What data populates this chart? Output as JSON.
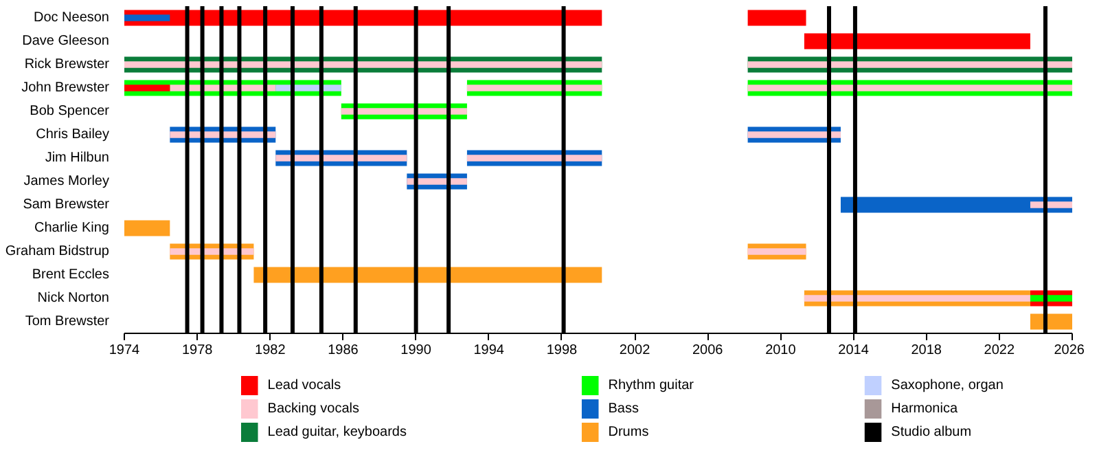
{
  "chart_data": {
    "type": "bar",
    "orientation": "horizontal",
    "categories": [
      "Doc Neeson",
      "Dave Gleeson",
      "Rick Brewster",
      "John Brewster",
      "Bob Spencer",
      "Chris Bailey",
      "Jim Hilbun",
      "James Morley",
      "Sam Brewster",
      "Charlie King",
      "Graham Bidstrup",
      "Brent Eccles",
      "Nick Norton",
      "Tom Brewster"
    ],
    "xlim": [
      1974,
      2026
    ],
    "xticks": [
      1974,
      1978,
      1982,
      1986,
      1990,
      1994,
      1998,
      2002,
      2006,
      2010,
      2014,
      2018,
      2022,
      2026
    ],
    "grid": false,
    "legend": "bottom",
    "series": [
      {
        "name": "Lead vocals",
        "color": "#ff0000",
        "base": [
          1974,
          2011.3,
          null,
          null,
          null,
          null,
          null,
          null,
          null,
          null,
          null,
          null,
          null,
          null
        ],
        "values": [
          26.2,
          12.4,
          null,
          null,
          null,
          null,
          null,
          null,
          null,
          null,
          null,
          null,
          null,
          null
        ]
      },
      {
        "name": "Backing vocals",
        "color": "#ffc8d0",
        "base": [
          null,
          null,
          1974,
          1976.5,
          1985.9,
          1976.5,
          1982.3,
          1989.5,
          2023.7,
          null,
          1976.5,
          null,
          2011.3,
          null
        ],
        "values": [
          null,
          null,
          26.2,
          5.8,
          6.9,
          5.8,
          7.2,
          3.3,
          2.3,
          null,
          4.6,
          null,
          12.4,
          null
        ]
      },
      {
        "color": "#ffc8d0",
        "base": [
          null,
          null,
          2008.2,
          1992.8,
          null,
          2008.2,
          1992.8,
          null,
          null,
          null,
          2008.2,
          null,
          null,
          null
        ],
        "values": [
          null,
          null,
          17.8,
          7.4,
          null,
          5.1,
          7.4,
          null,
          null,
          null,
          3.2,
          null,
          null,
          null
        ]
      },
      {
        "color": "#ffc8d0",
        "base": [
          null,
          null,
          null,
          2008.2,
          null,
          null,
          null,
          null,
          null,
          null,
          null,
          null,
          null,
          null
        ],
        "values": [
          null,
          null,
          null,
          17.8,
          null,
          null,
          null,
          null,
          null,
          null,
          null,
          null,
          null,
          null
        ]
      },
      {
        "name": "Lead guitar, keyboards",
        "color": "#0a7d3a",
        "base": [
          null,
          null,
          1974,
          null,
          null,
          null,
          null,
          null,
          null,
          null,
          null,
          null,
          null,
          null
        ],
        "values": [
          null,
          null,
          26.2,
          null,
          null,
          null,
          null,
          null,
          null,
          null,
          null,
          null,
          null,
          null
        ]
      },
      {
        "name": "Rhythm guitar",
        "color": "#00ff00",
        "base": [
          null,
          null,
          null,
          1974,
          1985.9,
          null,
          null,
          null,
          null,
          null,
          null,
          null,
          2023.7,
          null
        ],
        "values": [
          null,
          null,
          null,
          11.9,
          6.9,
          null,
          null,
          null,
          null,
          null,
          null,
          null,
          2.3,
          null
        ]
      },
      {
        "name": "Bass",
        "color": "#0a64c8",
        "base": [
          1974,
          null,
          null,
          null,
          null,
          1976.5,
          1982.3,
          1989.5,
          2013.3,
          null,
          null,
          null,
          null,
          null
        ],
        "values": [
          2.5,
          null,
          null,
          null,
          null,
          5.8,
          7.2,
          3.3,
          12.7,
          null,
          null,
          null,
          null,
          null
        ]
      },
      {
        "name": "Drums",
        "color": "#ffa020",
        "base": [
          null,
          null,
          null,
          null,
          null,
          null,
          null,
          null,
          null,
          1974,
          1976.5,
          1981.1,
          2011.3,
          2023.7
        ],
        "values": [
          null,
          null,
          null,
          null,
          null,
          null,
          null,
          null,
          null,
          2.5,
          4.6,
          19.1,
          12.4,
          2.3
        ]
      },
      {
        "name": "Saxophone, organ",
        "color": "#c0d0ff",
        "base": [
          null,
          null,
          null,
          1982.3,
          null,
          null,
          null,
          null,
          null,
          null,
          null,
          null,
          null,
          null
        ],
        "values": [
          null,
          null,
          null,
          3.6,
          null,
          null,
          null,
          null,
          null,
          null,
          null,
          null,
          null,
          null
        ]
      },
      {
        "name": "Harmonica",
        "color": "#a89898",
        "base": [
          null,
          null,
          null,
          null,
          null,
          null,
          null,
          null,
          null,
          null,
          null,
          null,
          null,
          null
        ],
        "values": [
          null,
          null,
          null,
          null,
          null,
          null,
          null,
          null,
          null,
          null,
          null,
          null,
          null,
          null
        ]
      },
      {
        "color": "#ff0000",
        "base": [
          2008.2,
          null,
          null,
          1974,
          null,
          null,
          null,
          null,
          null,
          null,
          null,
          null,
          2023.7,
          null
        ],
        "values": [
          3.2,
          null,
          null,
          2.5,
          null,
          null,
          null,
          null,
          null,
          null,
          null,
          null,
          2.3,
          null
        ]
      },
      {
        "color": "#0a7d3a",
        "base": [
          null,
          null,
          2008.2,
          null,
          null,
          null,
          null,
          null,
          null,
          null,
          null,
          null,
          null,
          null
        ],
        "values": [
          null,
          null,
          17.8,
          null,
          null,
          null,
          null,
          null,
          null,
          null,
          null,
          null,
          null,
          null
        ]
      },
      {
        "color": "#00ff00",
        "base": [
          null,
          null,
          null,
          1992.8,
          null,
          null,
          null,
          null,
          null,
          null,
          null,
          null,
          null,
          null
        ],
        "values": [
          null,
          null,
          null,
          7.4,
          null,
          null,
          null,
          null,
          null,
          null,
          null,
          null,
          null,
          null
        ]
      },
      {
        "color": "#00ff00",
        "base": [
          null,
          null,
          null,
          2008.2,
          null,
          null,
          null,
          null,
          null,
          null,
          null,
          null,
          null,
          null
        ],
        "values": [
          null,
          null,
          null,
          17.8,
          null,
          null,
          null,
          null,
          null,
          null,
          null,
          null,
          null,
          null
        ]
      },
      {
        "color": "#0a64c8",
        "base": [
          null,
          null,
          null,
          null,
          null,
          2008.2,
          1992.8,
          null,
          null,
          null,
          null,
          null,
          null,
          null
        ],
        "values": [
          null,
          null,
          null,
          null,
          null,
          5.1,
          7.4,
          null,
          null,
          null,
          null,
          null,
          null,
          null
        ]
      },
      {
        "color": "#ffa020",
        "base": [
          null,
          null,
          null,
          null,
          null,
          null,
          null,
          null,
          null,
          null,
          2008.2,
          null,
          null,
          null
        ],
        "values": [
          null,
          null,
          null,
          null,
          null,
          null,
          null,
          null,
          null,
          null,
          3.2,
          null,
          null,
          null
        ]
      }
    ],
    "ref_lines": [
      {
        "axis": "x",
        "value": 1977.45,
        "label": "Studio album",
        "color": "#000000"
      },
      {
        "axis": "x",
        "value": 1978.28,
        "color": "#000000"
      },
      {
        "axis": "x",
        "value": 1979.33,
        "color": "#000000"
      },
      {
        "axis": "x",
        "value": 1980.31,
        "color": "#000000"
      },
      {
        "axis": "x",
        "value": 1981.73,
        "color": "#000000"
      },
      {
        "axis": "x",
        "value": 1983.23,
        "color": "#000000"
      },
      {
        "axis": "x",
        "value": 1984.81,
        "color": "#000000"
      },
      {
        "axis": "x",
        "value": 1986.69,
        "color": "#000000"
      },
      {
        "axis": "x",
        "value": 1990.0,
        "color": "#000000"
      },
      {
        "axis": "x",
        "value": 1991.79,
        "color": "#000000"
      },
      {
        "axis": "x",
        "value": 1998.1,
        "color": "#000000"
      },
      {
        "axis": "x",
        "value": 2012.66,
        "color": "#000000"
      },
      {
        "axis": "x",
        "value": 2014.09,
        "color": "#000000"
      },
      {
        "axis": "x",
        "value": 2024.53,
        "color": "#000000"
      }
    ]
  }
}
